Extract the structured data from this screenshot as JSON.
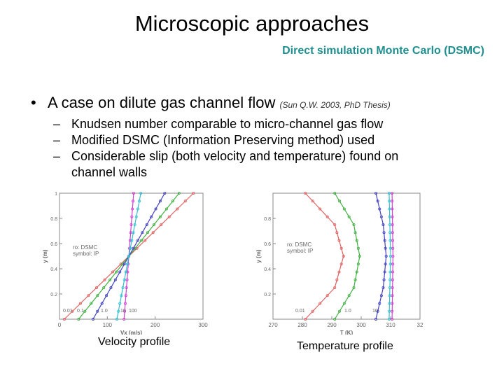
{
  "slide": {
    "title": "Microscopic approaches",
    "subtitle": "Direct simulation Monte Carlo (DSMC)",
    "bullet": {
      "text": "A case on dilute gas channel flow",
      "citation": "(Sun Q.W. 2003, PhD Thesis)"
    },
    "sub_bullets": [
      "Knudsen number comparable to micro-channel gas flow",
      "Modified DSMC (Information Preserving method) used",
      "Considerable slip (both velocity and temperature) found on channel walls"
    ]
  },
  "chart_data": [
    {
      "type": "line",
      "caption": "Velocity profile",
      "xlabel": "Vx (m/s)",
      "ylabel": "y (m)",
      "xticks": [
        "0",
        "100",
        "200",
        "300"
      ],
      "yticks": [
        "0.2",
        "0.4",
        "0.6",
        "0.8",
        "1"
      ],
      "legend": [
        "ro: DSMC",
        "symbol: IP"
      ],
      "kn_labels": [
        "0.01",
        "0.1",
        "1.0",
        "10",
        "100"
      ],
      "series": [
        {
          "color": "#e06060",
          "y": [
            0,
            1
          ],
          "x": [
            10,
            280
          ]
        },
        {
          "color": "#40b040",
          "y": [
            0,
            1
          ],
          "x": [
            40,
            250
          ]
        },
        {
          "color": "#4040c0",
          "y": [
            0,
            1
          ],
          "x": [
            70,
            220
          ]
        },
        {
          "color": "#d040d0",
          "y": [
            0,
            1
          ],
          "x": [
            135,
            155
          ]
        },
        {
          "color": "#30c0d0",
          "y": [
            0,
            1
          ],
          "x": [
            120,
            170
          ]
        }
      ]
    },
    {
      "type": "line",
      "caption": "Temperature profile",
      "xlabel": "T (K)",
      "ylabel": "y (m)",
      "xticks": [
        "270",
        "280",
        "290",
        "300",
        "310",
        "32"
      ],
      "yticks": [
        "0.2",
        "0.4",
        "0.6",
        "0.8"
      ],
      "legend": [
        "ro: DSMC",
        "symbol: IP"
      ],
      "kn_labels": [
        "0.01",
        "1.0",
        "10"
      ],
      "series": [
        {
          "color": "#e06060",
          "y": [
            0,
            0.25,
            0.5,
            0.75,
            1
          ],
          "x": [
            281,
            291,
            294,
            291,
            281
          ]
        },
        {
          "color": "#40b040",
          "y": [
            0,
            0.25,
            0.5,
            0.75,
            1
          ],
          "x": [
            291,
            297.5,
            299.5,
            297.5,
            291
          ]
        },
        {
          "color": "#4040c0",
          "y": [
            0,
            0.25,
            0.5,
            0.75,
            1
          ],
          "x": [
            305,
            307.5,
            308.5,
            307.5,
            305
          ]
        },
        {
          "color": "#30c0d0",
          "y": [
            0,
            0.5,
            1
          ],
          "x": [
            309.5,
            310,
            309.5
          ]
        },
        {
          "color": "#d040d0",
          "y": [
            0,
            0.5,
            1
          ],
          "x": [
            310.5,
            310.8,
            310.5
          ]
        }
      ]
    }
  ]
}
